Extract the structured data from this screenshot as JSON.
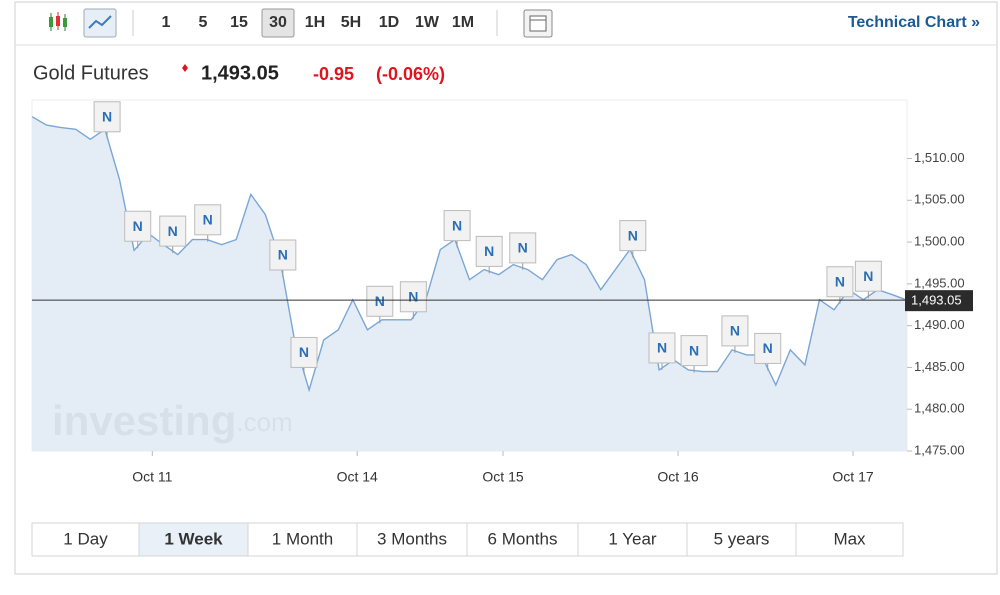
{
  "toolbar": {
    "intervals": [
      "1",
      "5",
      "15",
      "30",
      "1H",
      "5H",
      "1D",
      "1W",
      "1M"
    ],
    "selected_interval": 3,
    "link": "Technical Chart »"
  },
  "header": {
    "title": "Gold Futures",
    "price": "1,493.05",
    "change": "-0.95",
    "change_percent": "(-0.06%)"
  },
  "watermark": {
    "brand": "investing",
    "suffix": ".com"
  },
  "ranges": {
    "buttons": [
      "1 Day",
      "1 Week",
      "1 Month",
      "3 Months",
      "6 Months",
      "1 Year",
      "5 years",
      "Max"
    ],
    "selected": 1
  },
  "chart_data": {
    "type": "area",
    "x": [
      0,
      2,
      4,
      6,
      8,
      10,
      12,
      14,
      16,
      18,
      20,
      22,
      24,
      26,
      28,
      30,
      32,
      34,
      36,
      38,
      40,
      42,
      44,
      46,
      48,
      50,
      52,
      54,
      56,
      58,
      60,
      62,
      64,
      66,
      68,
      70,
      72,
      74,
      76,
      78,
      80,
      82,
      84,
      86,
      88,
      90,
      92,
      94,
      96,
      98,
      100,
      102,
      104,
      106,
      108,
      110,
      112,
      114,
      116,
      118,
      120
    ],
    "values": [
      1515,
      1514,
      1513.7,
      1513.5,
      1512.3,
      1513.5,
      1507.5,
      1499,
      1501,
      1499.7,
      1498.5,
      1500.3,
      1500.3,
      1499.7,
      1500.3,
      1505.7,
      1503.3,
      1498,
      1488.3,
      1482.3,
      1488.3,
      1489.5,
      1493.1,
      1489.5,
      1490.7,
      1490.7,
      1490.7,
      1493.1,
      1499.1,
      1500.3,
      1495.5,
      1496.7,
      1496.1,
      1497.3,
      1496.7,
      1495.5,
      1497.9,
      1498.5,
      1497.3,
      1494.3,
      1496.7,
      1499.1,
      1495.5,
      1484.7,
      1485.9,
      1484.7,
      1484.5,
      1484.5,
      1487.1,
      1486.5,
      1486.5,
      1482.9,
      1487.1,
      1485.3,
      1493.1,
      1491.9,
      1494.3,
      1493.1,
      1494.3,
      1493.7,
      1493.05
    ],
    "color": "#7aa6d6",
    "fill": "#dfeaf4",
    "xlim": [
      0,
      120
    ],
    "xticks": [
      {
        "value": 16.5,
        "label": "Oct 11"
      },
      {
        "value": 44.6,
        "label": "Oct 14"
      },
      {
        "value": 64.6,
        "label": "Oct 15"
      },
      {
        "value": 88.6,
        "label": "Oct 16"
      },
      {
        "value": 112.6,
        "label": "Oct 17"
      }
    ],
    "ylim": [
      1475,
      1517
    ],
    "yticks": [
      {
        "value": 1475,
        "label": "1,475.00"
      },
      {
        "value": 1480,
        "label": "1,480.00"
      },
      {
        "value": 1485,
        "label": "1,485.00"
      },
      {
        "value": 1490,
        "label": "1,490.00"
      },
      {
        "value": 1495,
        "label": "1,495.00"
      },
      {
        "value": 1500,
        "label": "1,500.00"
      },
      {
        "value": 1505,
        "label": "1,505.00"
      },
      {
        "value": 1510,
        "label": "1,510.00"
      }
    ],
    "last_price": {
      "value": 1493.05,
      "label": "1,493.05"
    },
    "news_markers": [
      {
        "x": 10.3,
        "label": "N"
      },
      {
        "x": 14.5,
        "label": "N"
      },
      {
        "x": 19.3,
        "label": "N"
      },
      {
        "x": 24.1,
        "label": "N"
      },
      {
        "x": 34.4,
        "label": "N"
      },
      {
        "x": 37.3,
        "label": "N"
      },
      {
        "x": 47.7,
        "label": "N"
      },
      {
        "x": 52.3,
        "label": "N"
      },
      {
        "x": 58.3,
        "label": "N"
      },
      {
        "x": 62.7,
        "label": "N"
      },
      {
        "x": 67.3,
        "label": "N"
      },
      {
        "x": 82.4,
        "label": "N"
      },
      {
        "x": 86.4,
        "label": "N"
      },
      {
        "x": 90.8,
        "label": "N"
      },
      {
        "x": 96.4,
        "label": "N"
      },
      {
        "x": 100.9,
        "label": "N"
      },
      {
        "x": 110.8,
        "label": "N"
      },
      {
        "x": 114.7,
        "label": "N"
      }
    ]
  }
}
